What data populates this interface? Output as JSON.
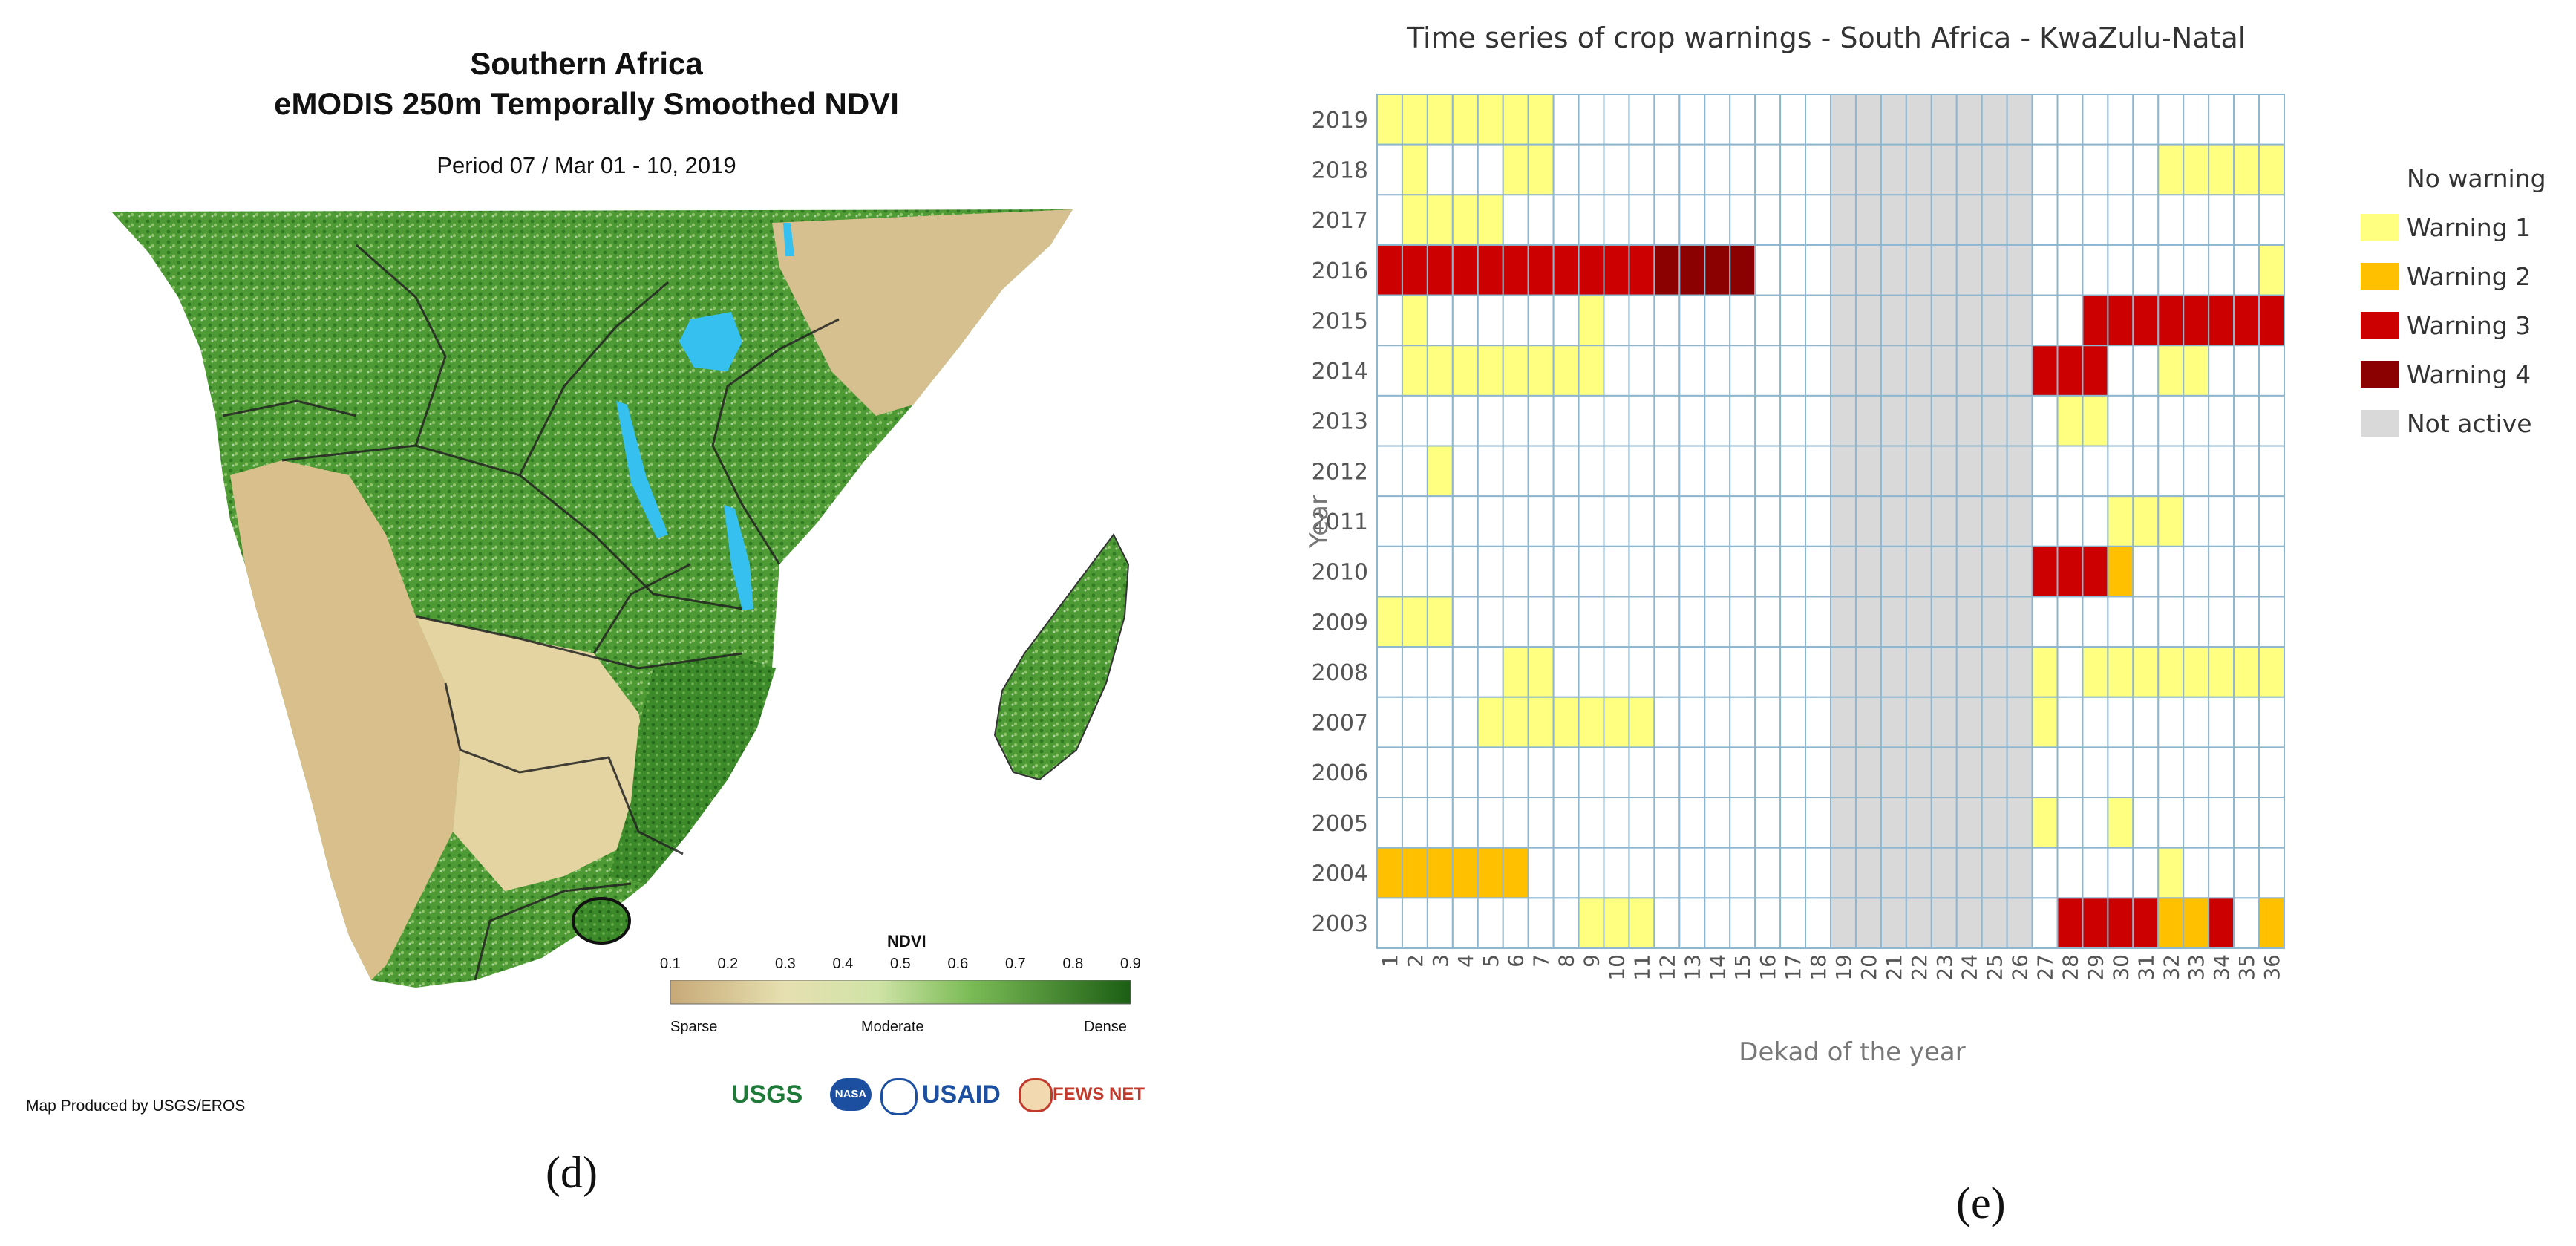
{
  "map": {
    "title_line1": "Southern Africa",
    "title_line2": "eMODIS 250m Temporally Smoothed NDVI",
    "period": "Period 07 / Mar 01 - 10, 2019",
    "legend": {
      "title": "NDVI",
      "ticks": [
        "0.1",
        "0.2",
        "0.3",
        "0.4",
        "0.5",
        "0.6",
        "0.7",
        "0.8",
        "0.9"
      ],
      "low_label": "Sparse",
      "mid_label": "Moderate",
      "high_label": "Dense",
      "colors": [
        "#c8a978",
        "#d8c494",
        "#e6e0b0",
        "#cfe3a6",
        "#a8d37e",
        "#7cbc57",
        "#4f9a35",
        "#2f7a22",
        "#1c5e14"
      ]
    },
    "credit": "Map Produced by USGS/EROS",
    "logos": [
      "USGS",
      "NASA",
      "USAID",
      "FEWS NET"
    ],
    "label": "(d)"
  },
  "chart_data": {
    "type": "heatmap",
    "title": "Time series of crop warnings - South Africa - KwaZulu-Natal",
    "xlabel": "Dekad of the year",
    "ylabel": "Year",
    "x": [
      "1",
      "2",
      "3",
      "4",
      "5",
      "6",
      "7",
      "8",
      "9",
      "10",
      "11",
      "12",
      "13",
      "14",
      "15",
      "16",
      "17",
      "18",
      "19",
      "20",
      "21",
      "22",
      "23",
      "24",
      "25",
      "26",
      "27",
      "28",
      "29",
      "30",
      "31",
      "32",
      "33",
      "34",
      "35",
      "36"
    ],
    "years": [
      "2019",
      "2018",
      "2017",
      "2016",
      "2015",
      "2014",
      "2013",
      "2012",
      "2011",
      "2010",
      "2009",
      "2008",
      "2007",
      "2006",
      "2005",
      "2004",
      "2003"
    ],
    "legend": [
      {
        "key": "0",
        "label": "No warning",
        "color": "#ffffff"
      },
      {
        "key": "1",
        "label": "Warning 1",
        "color": "#ffff80"
      },
      {
        "key": "2",
        "label": "Warning 2",
        "color": "#ffc000"
      },
      {
        "key": "3",
        "label": "Warning 3",
        "color": "#cc0000"
      },
      {
        "key": "4",
        "label": "Warning 4",
        "color": "#8b0000"
      },
      {
        "key": "N",
        "label": "Not active",
        "color": "#d9d9d9"
      }
    ],
    "not_active_dekads": [
      19,
      20,
      21,
      22,
      23,
      24,
      25,
      26
    ],
    "rows": [
      "1111111                             ",
      " 1   11                        11111",
      " 1111                               ",
      "333333333334444                    1",
      " 1      1                   33333333",
      " 11111111                 333  11   ",
      "                           11       ",
      "  1                                 ",
      "                             111    ",
      "                          3332      ",
      "111                                 ",
      "     11                   1 11111111",
      "    1111111               1         ",
      "                                    ",
      "                          1  1      ",
      "222222                         1    ",
      "        111                3333223 2"
    ],
    "label": "(e)"
  }
}
